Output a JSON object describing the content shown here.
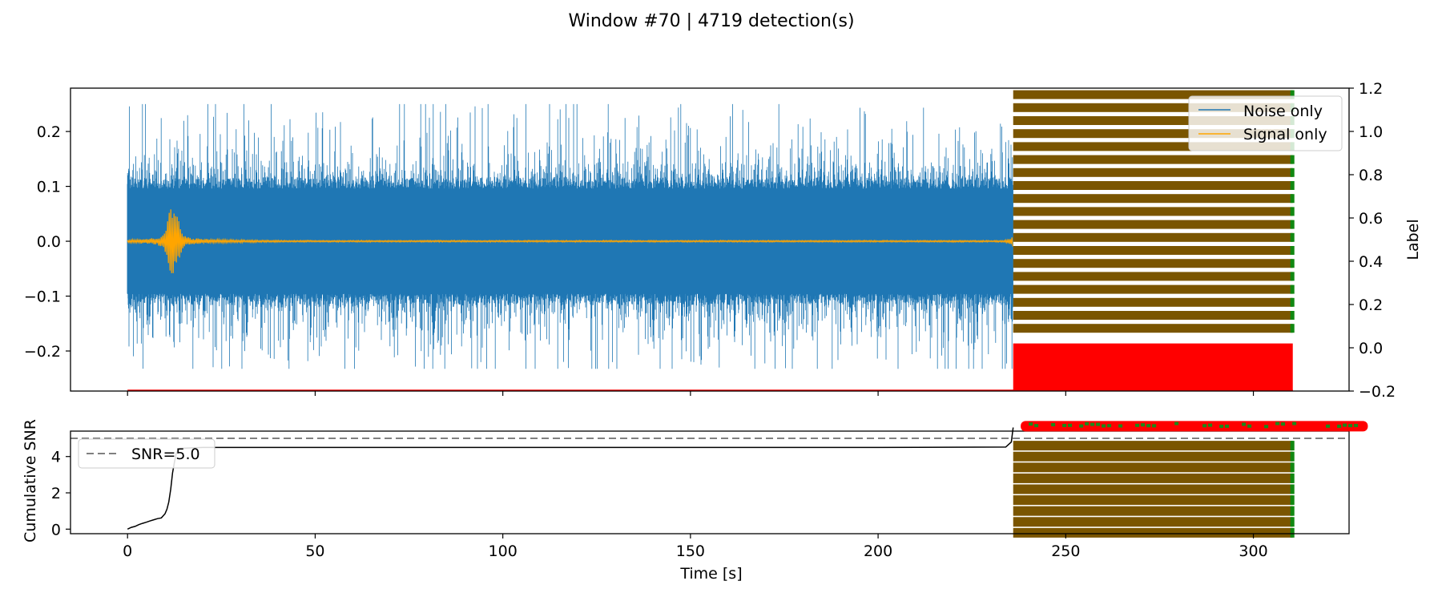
{
  "chart_data": {
    "title": "Window #70 | 4719 detection(s)",
    "top_panel": {
      "type": "line",
      "x_range": [
        -15.2,
        325.5
      ],
      "y_range": [
        -0.273,
        0.279
      ],
      "y_ticks": [
        0.2,
        0.1,
        0.0,
        -0.1,
        -0.2
      ],
      "y_tick_labels": [
        "0.2",
        "0.1",
        "0.0",
        "−0.1",
        "−0.2"
      ],
      "right_axis": {
        "label": "Label",
        "range": [
          -0.2,
          1.2
        ],
        "ticks": [
          1.2,
          1.0,
          0.8,
          0.6,
          0.4,
          0.2,
          0.0,
          -0.2
        ],
        "tick_labels": [
          "1.2",
          "1.0",
          "0.8",
          "0.6",
          "0.4",
          "0.2",
          "0.0",
          "−0.2"
        ]
      },
      "series": [
        {
          "name": "Noise only",
          "color": "#1f77b4",
          "x_range": [
            0,
            236
          ],
          "typical_amplitude": 0.12,
          "peak_amplitude": 0.25
        },
        {
          "name": "Signal only",
          "color": "#ffa500",
          "x_range": [
            0,
            236
          ],
          "event_center": 12.2,
          "event_peak": 0.06
        }
      ],
      "detection_band": {
        "x_range": [
          236,
          310.5
        ],
        "label_color": "#7a5500",
        "edge_color": "#118811",
        "zero_color": "#ff0000",
        "label_values_upper": [
          1.17,
          1.11,
          1.05,
          0.99,
          0.93,
          0.87,
          0.81,
          0.75,
          0.69,
          0.63,
          0.57,
          0.51,
          0.45,
          0.39,
          0.33,
          0.27,
          0.21,
          0.15,
          0.09
        ],
        "zero_band": [
          -0.2,
          0.02
        ]
      },
      "legend": {
        "position": "top-right",
        "entries": [
          "Noise only",
          "Signal only"
        ]
      }
    },
    "bottom_panel": {
      "type": "line",
      "x_range": [
        -15.2,
        325.5
      ],
      "y_range": [
        -0.25,
        5.4
      ],
      "ylabel": "Cumulative SNR",
      "xlabel": "Time [s]",
      "x_ticks": [
        0,
        50,
        100,
        150,
        200,
        250,
        300
      ],
      "x_tick_labels": [
        "0",
        "50",
        "100",
        "150",
        "200",
        "250",
        "300"
      ],
      "y_ticks": [
        0,
        2,
        4
      ],
      "y_tick_labels": [
        "0",
        "2",
        "4"
      ],
      "threshold": {
        "value": 5.0,
        "label": "SNR=5.0",
        "color": "#808080"
      },
      "curve": {
        "color": "#000000",
        "x": [
          0,
          1,
          2,
          3,
          4,
          5,
          6,
          7,
          8,
          9,
          10,
          10.5,
          11,
          11.5,
          12,
          12.5,
          13,
          14,
          20,
          100,
          200,
          234,
          235.5,
          236
        ],
        "y": [
          0.0,
          0.1,
          0.15,
          0.25,
          0.32,
          0.38,
          0.45,
          0.52,
          0.58,
          0.62,
          0.85,
          1.1,
          1.5,
          2.2,
          3.1,
          3.7,
          4.2,
          4.45,
          4.5,
          4.5,
          4.5,
          4.52,
          4.8,
          5.6
        ]
      },
      "detection_band": {
        "x_range": [
          236,
          310.5
        ],
        "label_values": [
          4.6,
          4.0,
          3.4,
          2.8,
          2.2,
          1.6,
          1.0,
          0.4,
          -0.2
        ],
        "overflow_x_end": 330.5,
        "overflow_y": 5.65
      },
      "legend": {
        "position": "top-left",
        "entries": [
          "SNR=5.0"
        ]
      }
    }
  }
}
